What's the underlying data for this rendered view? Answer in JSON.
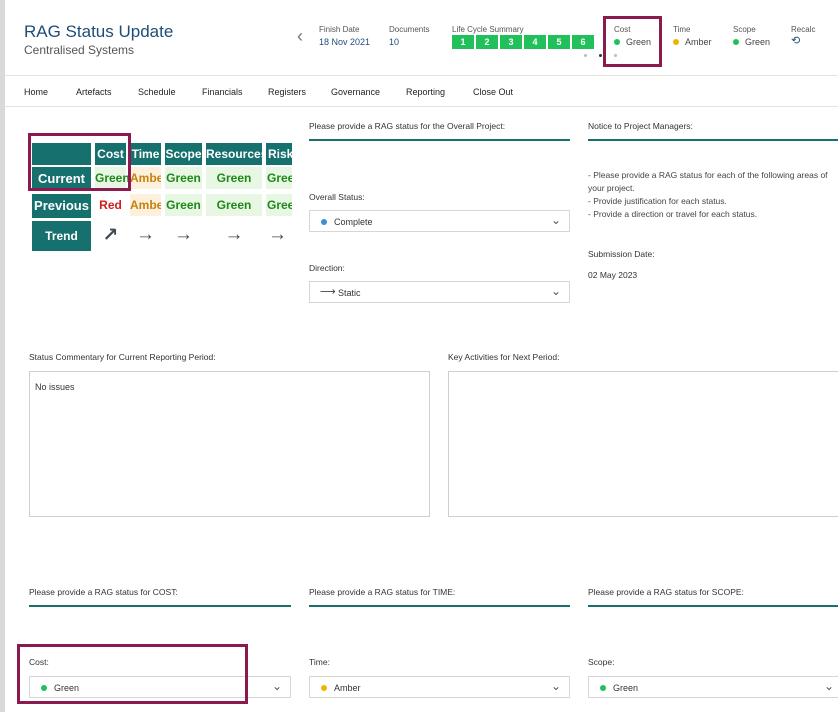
{
  "header": {
    "title": "RAG Status Update",
    "subtitle": "Centralised Systems",
    "finish_date_label": "Finish Date",
    "finish_date_value": "18 Nov 2021",
    "documents_label": "Documents",
    "documents_value": "10",
    "lifecycle_label": "Life Cycle Summary",
    "lifecycle_steps": [
      "1",
      "2",
      "3",
      "4",
      "5",
      "6"
    ],
    "cost_label": "Cost",
    "cost_value": "Green",
    "time_label": "Time",
    "time_value": "Amber",
    "scope_label": "Scope",
    "scope_value": "Green",
    "recalc_label": "Recalc"
  },
  "nav": {
    "items": [
      "Home",
      "Artefacts",
      "Schedule",
      "Financials",
      "Registers",
      "Governance",
      "Reporting",
      "Close Out"
    ]
  },
  "rag_table": {
    "columns": [
      "Cost",
      "Time",
      "Scope",
      "Resources",
      "Risk"
    ],
    "current_label": "Current",
    "previous_label": "Previous",
    "trend_label": "Trend",
    "current": [
      "Green",
      "Amber",
      "Green",
      "Green",
      "Green"
    ],
    "previous": [
      "Red",
      "Amber",
      "Green",
      "Green",
      "Green"
    ],
    "trend": [
      "↗",
      "→",
      "→",
      "→",
      "→"
    ]
  },
  "overall": {
    "section_label": "Please provide a RAG status for the Overall Project:",
    "status_label": "Overall Status:",
    "status_value": "Complete",
    "direction_label": "Direction:",
    "direction_value": "Static"
  },
  "notice": {
    "section_label": "Notice to Project Managers:",
    "lines": [
      "- Please provide a RAG status for each of the following areas of",
      "your project.",
      "- Provide justification for each status.",
      "- Provide a direction or travel for each status."
    ],
    "submission_label": "Submission Date:",
    "submission_value": "02 May 2023"
  },
  "commentary": {
    "label": "Status Commentary for Current Reporting Period:",
    "value": "No issues"
  },
  "key_activities": {
    "label": "Key Activities for Next Period:",
    "value": ""
  },
  "cost_section": {
    "section_label": "Please provide a RAG status for COST:",
    "field_label": "Cost:",
    "value": "Green"
  },
  "time_section": {
    "section_label": "Please provide a RAG status for TIME:",
    "field_label": "Time:",
    "value": "Amber"
  },
  "scope_section": {
    "section_label": "Please provide a RAG status for SCOPE:",
    "field_label": "Scope:",
    "value": "Green"
  },
  "colors": {
    "teal": "#16706d",
    "green": "#22c05a",
    "amber": "#f0b400",
    "red": "#d21d1d",
    "highlight": "#8b1a4e",
    "complete_dot": "#3a8fd6"
  }
}
